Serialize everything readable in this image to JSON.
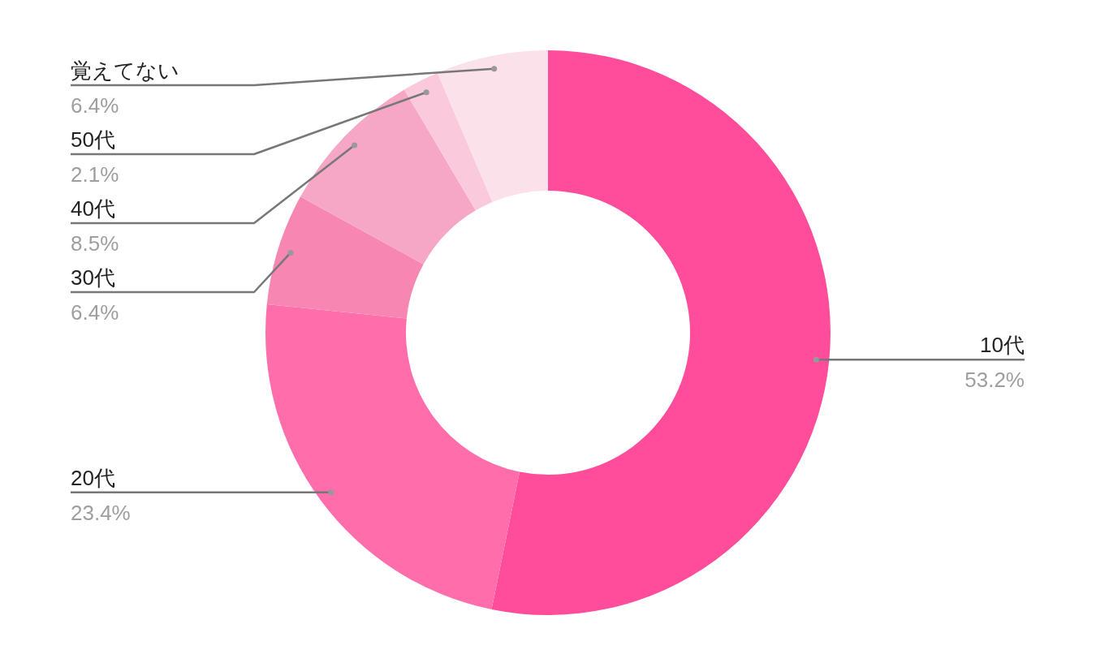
{
  "chart_data": {
    "type": "donut",
    "categories": [
      "10代",
      "20代",
      "30代",
      "40代",
      "50代",
      "覚えてない"
    ],
    "values": [
      53.2,
      23.4,
      6.4,
      8.5,
      2.1,
      6.4
    ],
    "value_labels": [
      "53.2%",
      "23.4%",
      "6.4%",
      "8.5%",
      "2.1%",
      "6.4%"
    ],
    "colors": [
      "#ff4d9b",
      "#ff6dab",
      "#f786b3",
      "#f7a7c6",
      "#fac9dc",
      "#fbe1ea"
    ]
  }
}
